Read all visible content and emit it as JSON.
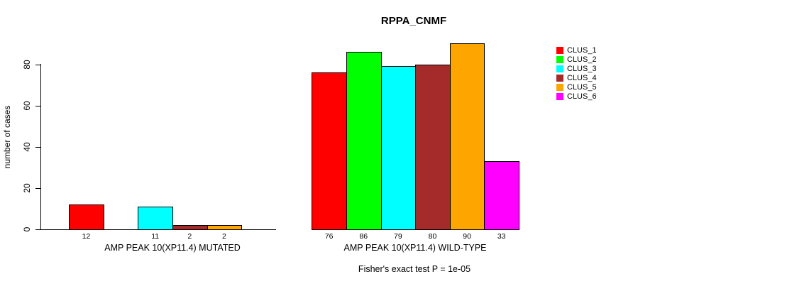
{
  "chart_data": {
    "type": "bar",
    "title": "RPPA_CNMF",
    "ylabel": "number of cases",
    "xlabel": "",
    "ylim": [
      0,
      90
    ],
    "yticks": [
      0,
      20,
      40,
      60,
      80
    ],
    "grid": false,
    "legend_position": "right-outside",
    "series_names": [
      "CLUS_1",
      "CLUS_2",
      "CLUS_3",
      "CLUS_4",
      "CLUS_5",
      "CLUS_6"
    ],
    "colors": [
      "#ff0000",
      "#00ff00",
      "#00ffff",
      "#a52a2a",
      "#ffa500",
      "#ff00ff"
    ],
    "groups": [
      {
        "label": "AMP PEAK 10(XP11.4) MUTATED",
        "values": [
          12,
          0,
          11,
          2,
          2,
          0
        ],
        "bar_labels": [
          "12",
          null,
          "11",
          "2",
          "2",
          null
        ]
      },
      {
        "label": "AMP PEAK 10(XP11.4) WILD-TYPE",
        "values": [
          76,
          86,
          79,
          80,
          90,
          33
        ],
        "bar_labels": [
          "76",
          "86",
          "79",
          "80",
          "90",
          "33"
        ]
      }
    ],
    "annotation": "Fisher's exact test P = 1e-05"
  }
}
